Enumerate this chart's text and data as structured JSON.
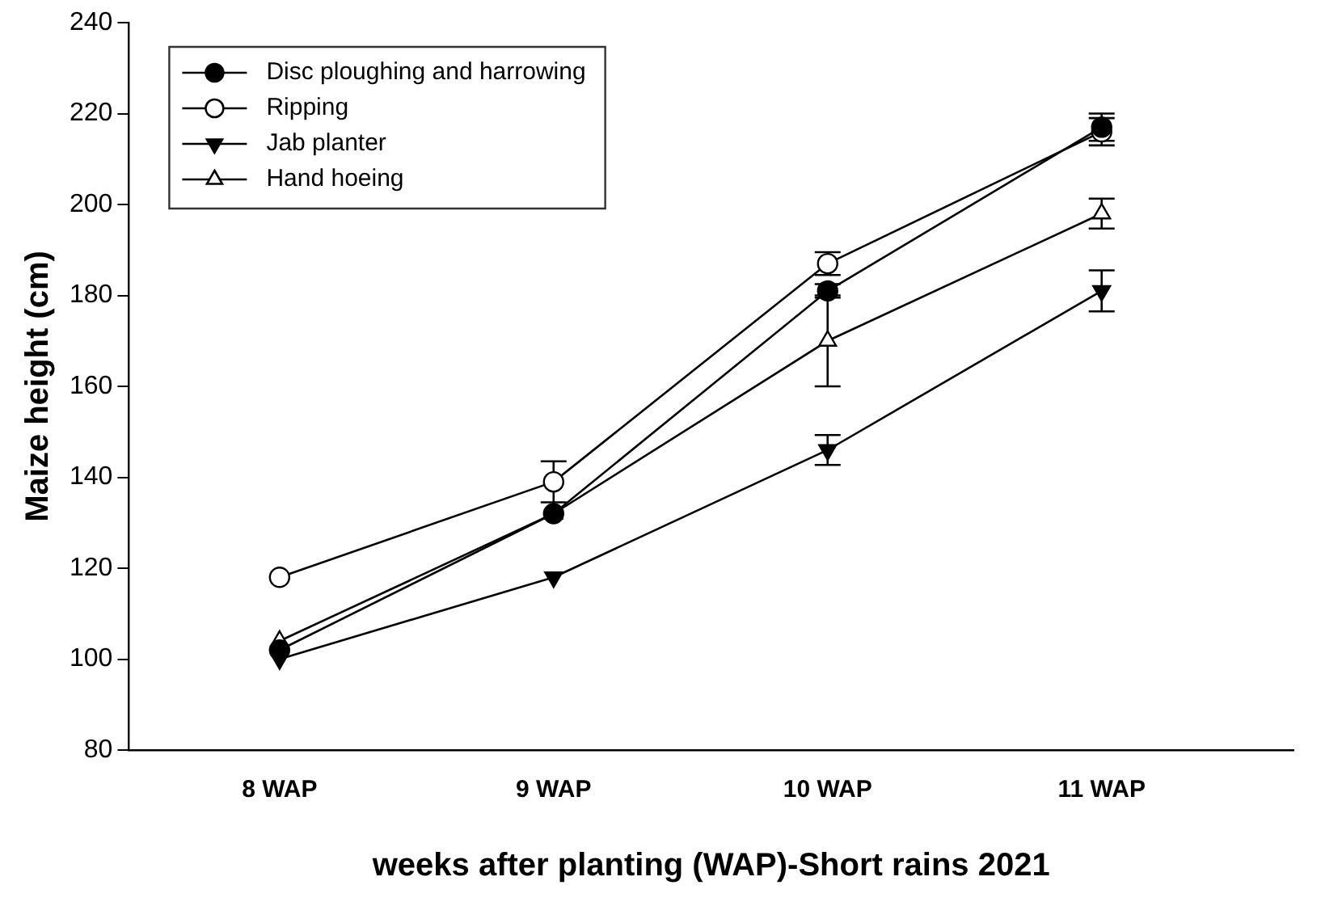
{
  "chart_data": {
    "type": "line",
    "xlabel": "weeks after planting (WAP)-Short rains 2021",
    "ylabel": "Maize height (cm)",
    "categories": [
      "8 WAP",
      "9 WAP",
      "10 WAP",
      "11 WAP"
    ],
    "series": [
      {
        "name": "Disc ploughing and harrowing",
        "color": "#000000",
        "marker": "circle",
        "values": [
          102,
          132,
          181,
          217
        ],
        "errors": [
          null,
          null,
          1.5,
          3
        ]
      },
      {
        "name": "Ripping",
        "color": "#000000",
        "marker": "circle-open",
        "values": [
          118,
          139,
          187,
          216
        ],
        "errors": [
          null,
          4.5,
          2.5,
          3
        ]
      },
      {
        "name": "Jab planter",
        "color": "#000000",
        "marker": "triangle-down",
        "values": [
          100,
          118,
          146,
          181
        ],
        "errors": [
          null,
          null,
          3.3,
          4.5
        ]
      },
      {
        "name": "Hand hoeing",
        "color": "#000000",
        "marker": "triangle-open",
        "values": [
          104,
          132,
          170,
          198
        ],
        "errors": [
          null,
          null,
          10,
          3.3
        ]
      }
    ],
    "ylim": [
      80,
      240
    ],
    "yticks": [
      80,
      100,
      120,
      140,
      160,
      180,
      200,
      220,
      240
    ],
    "legend": "top left",
    "grid": false,
    "line_style": "solid"
  }
}
